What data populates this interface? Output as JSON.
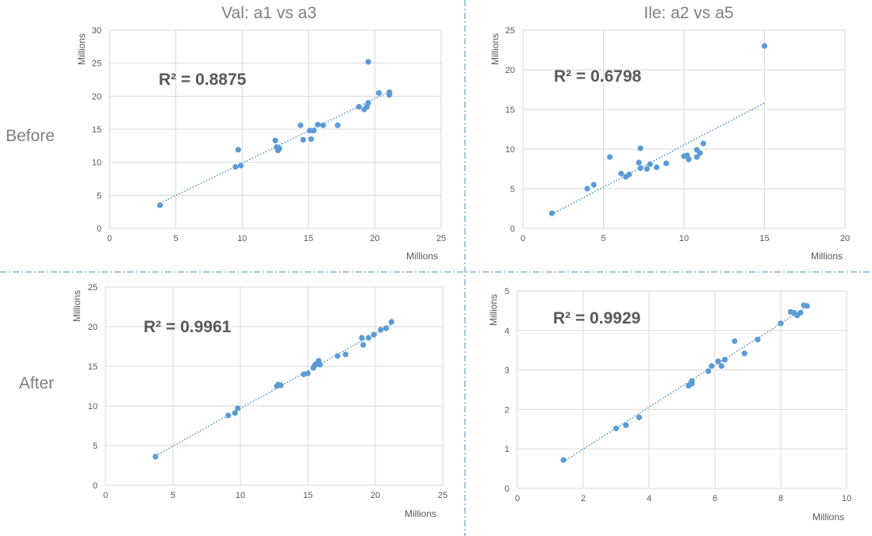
{
  "row_labels": [
    "Before",
    "After"
  ],
  "colors": {
    "marker": "#5b9bd5",
    "grid": "#d9d9d9",
    "divider": "#4a8fb0"
  },
  "chart_data": [
    {
      "type": "scatter",
      "title": "Val: a1 vs a3",
      "xlabel": "Millions",
      "ylabel": "Millions",
      "xlim": [
        0,
        25
      ],
      "ylim": [
        0,
        30
      ],
      "xticks": [
        0,
        5,
        10,
        15,
        20,
        25
      ],
      "yticks": [
        0,
        5,
        10,
        15,
        20,
        25,
        30
      ],
      "annotation": "R² = 0.8875",
      "trendline": {
        "style": "dotted",
        "x": [
          3.8,
          21.1
        ],
        "y": [
          3.8,
          20.7
        ]
      },
      "series": [
        {
          "x": [
            3.8,
            9.5,
            9.7,
            9.9,
            12.5,
            12.6,
            12.7,
            12.8,
            14.4,
            14.6,
            15.1,
            15.2,
            15.4,
            15.7,
            16.1,
            17.2,
            18.8,
            19.2,
            19.4,
            19.5,
            19.5,
            20.3,
            21.1,
            21.1
          ],
          "y": [
            3.5,
            9.3,
            11.9,
            9.5,
            13.3,
            12.3,
            11.8,
            12.1,
            15.6,
            13.4,
            14.8,
            13.5,
            14.8,
            15.7,
            15.6,
            15.6,
            18.4,
            18.0,
            18.4,
            25.2,
            19.0,
            20.5,
            20.2,
            20.6
          ]
        }
      ]
    },
    {
      "type": "scatter",
      "title": "Ile: a2 vs a5",
      "xlabel": "Millions",
      "ylabel": "Millions",
      "xlim": [
        0,
        20
      ],
      "ylim": [
        0,
        25
      ],
      "xticks": [
        0,
        5,
        10,
        15,
        20
      ],
      "yticks": [
        0,
        5,
        10,
        15,
        20,
        25
      ],
      "annotation": "R² = 0.6798",
      "trendline": {
        "style": "dotted",
        "x": [
          1.8,
          15.0
        ],
        "y": [
          1.8,
          15.8
        ]
      },
      "series": [
        {
          "x": [
            1.8,
            4.0,
            4.4,
            5.4,
            6.1,
            6.4,
            6.6,
            7.2,
            7.3,
            7.3,
            7.7,
            7.9,
            8.3,
            8.9,
            10.0,
            10.2,
            10.3,
            10.8,
            10.8,
            11.0,
            11.2,
            15.0
          ],
          "y": [
            1.9,
            5.0,
            5.5,
            9.0,
            6.9,
            6.5,
            6.8,
            8.3,
            7.6,
            10.1,
            7.5,
            8.1,
            7.7,
            8.2,
            9.1,
            9.2,
            8.7,
            9.0,
            9.9,
            9.5,
            10.7,
            23.0
          ]
        }
      ]
    },
    {
      "type": "scatter",
      "title": "",
      "xlabel": "Millions",
      "ylabel": "Millions",
      "xlim": [
        0,
        25
      ],
      "ylim": [
        0,
        25
      ],
      "xticks": [
        0,
        5,
        10,
        15,
        20,
        25
      ],
      "yticks": [
        0,
        5,
        10,
        15,
        20,
        25
      ],
      "annotation": "R² = 0.9961",
      "trendline": {
        "style": "dotted",
        "x": [
          3.7,
          21.2
        ],
        "y": [
          3.7,
          20.3
        ]
      },
      "series": [
        {
          "x": [
            3.7,
            9.1,
            9.6,
            9.8,
            12.7,
            12.8,
            13.0,
            14.7,
            15.0,
            15.4,
            15.5,
            15.6,
            15.8,
            15.9,
            17.2,
            17.8,
            19.0,
            19.1,
            19.5,
            19.9,
            20.4,
            20.8,
            21.2
          ],
          "y": [
            3.6,
            8.8,
            9.1,
            9.7,
            12.5,
            12.7,
            12.6,
            14.0,
            14.1,
            14.8,
            15.1,
            15.3,
            15.7,
            15.2,
            16.3,
            16.5,
            18.6,
            17.7,
            18.6,
            19.0,
            19.6,
            19.8,
            20.6
          ]
        }
      ]
    },
    {
      "type": "scatter",
      "title": "",
      "xlabel": "Millions",
      "ylabel": "Millions",
      "xlim": [
        0,
        10
      ],
      "ylim": [
        0,
        5
      ],
      "xticks": [
        0,
        2,
        4,
        6,
        8,
        10
      ],
      "yticks": [
        0,
        1,
        2,
        3,
        4,
        5
      ],
      "annotation": "R² = 0.9929",
      "trendline": {
        "style": "dotted",
        "x": [
          1.4,
          8.8
        ],
        "y": [
          0.68,
          4.6
        ]
      },
      "series": [
        {
          "x": [
            1.4,
            3.0,
            3.3,
            3.7,
            5.2,
            5.3,
            5.3,
            5.8,
            5.9,
            6.1,
            6.2,
            6.3,
            6.6,
            6.9,
            7.3,
            8.0,
            8.3,
            8.4,
            8.5,
            8.6,
            8.7,
            8.8
          ],
          "y": [
            0.72,
            1.52,
            1.6,
            1.8,
            2.6,
            2.65,
            2.72,
            2.97,
            3.1,
            3.22,
            3.1,
            3.26,
            3.73,
            3.42,
            3.77,
            4.18,
            4.47,
            4.45,
            4.38,
            4.45,
            4.64,
            4.62
          ]
        }
      ]
    }
  ]
}
